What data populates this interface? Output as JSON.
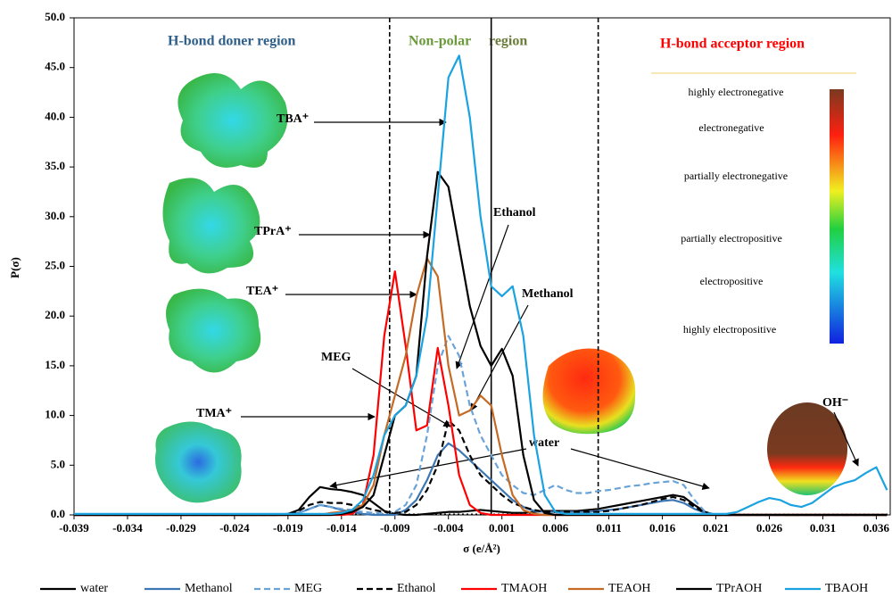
{
  "chart_data": {
    "type": "line",
    "xlabel": "σ (e/Å²)",
    "ylabel": "P(σ)",
    "x": [
      -0.039,
      -0.037,
      -0.035,
      -0.033,
      -0.031,
      -0.029,
      -0.027,
      -0.025,
      -0.023,
      -0.021,
      -0.02,
      -0.019,
      -0.018,
      -0.017,
      -0.016,
      -0.015,
      -0.014,
      -0.013,
      -0.012,
      -0.011,
      -0.01,
      -0.009,
      -0.008,
      -0.007,
      -0.006,
      -0.005,
      -0.004,
      -0.003,
      -0.002,
      -0.001,
      0,
      0.001,
      0.002,
      0.003,
      0.004,
      0.005,
      0.006,
      0.007,
      0.008,
      0.009,
      0.01,
      0.011,
      0.012,
      0.013,
      0.014,
      0.015,
      0.016,
      0.017,
      0.018,
      0.019,
      0.02,
      0.021,
      0.022,
      0.023,
      0.024,
      0.025,
      0.026,
      0.027,
      0.028,
      0.029,
      0.03,
      0.031,
      0.032,
      0.033,
      0.034,
      0.035,
      0.036,
      0.037
    ],
    "series": [
      {
        "name": "water",
        "color": "#000000",
        "dash": false,
        "values": [
          0,
          0,
          0,
          0,
          0,
          0,
          0,
          0,
          0,
          0,
          0,
          0.1,
          0.5,
          1.8,
          2.8,
          2.6,
          2.5,
          2.3,
          2.0,
          1.2,
          0.4,
          0.1,
          0,
          0,
          0.1,
          0.2,
          0.3,
          0.3,
          0.4,
          0.5,
          0.4,
          0.3,
          0.2,
          0.2,
          0.3,
          0.4,
          0.4,
          0.4,
          0.4,
          0.5,
          0.6,
          0.8,
          1.0,
          1.2,
          1.4,
          1.6,
          1.8,
          2.0,
          1.8,
          1.0,
          0.3,
          0,
          0,
          0,
          0,
          0,
          0,
          0,
          0,
          0,
          0,
          0,
          0,
          0,
          0,
          0,
          0,
          0
        ]
      },
      {
        "name": "Methanol",
        "color": "#3d77b3",
        "dash": false,
        "values": [
          0,
          0,
          0,
          0,
          0,
          0,
          0,
          0,
          0,
          0,
          0,
          0,
          0.2,
          0.6,
          1.0,
          0.8,
          0.5,
          0.3,
          0.1,
          0,
          0,
          0,
          0.5,
          1.5,
          3.5,
          6.0,
          7.2,
          6.5,
          5.5,
          4.5,
          3.5,
          2.5,
          1.5,
          0.8,
          0.4,
          0.3,
          0.3,
          0.3,
          0.3,
          0.3,
          0.4,
          0.5,
          0.6,
          0.8,
          1.0,
          1.2,
          1.4,
          1.5,
          1.2,
          0.6,
          0.2,
          0,
          0,
          0,
          0,
          0,
          0,
          0,
          0,
          0,
          0,
          0,
          0,
          0,
          0,
          0,
          0,
          0
        ]
      },
      {
        "name": "MEG",
        "color": "#6aa3d8",
        "dash": true,
        "values": [
          0,
          0,
          0,
          0,
          0,
          0,
          0,
          0,
          0,
          0,
          0,
          0,
          0.2,
          0.6,
          1.0,
          0.8,
          0.6,
          0.5,
          0.3,
          0.2,
          0.2,
          0.3,
          1.0,
          3.0,
          8.0,
          15.0,
          18.0,
          16.0,
          11.0,
          8.0,
          6.0,
          4.0,
          3.0,
          2.2,
          2.0,
          2.5,
          3.0,
          2.5,
          2.2,
          2.2,
          2.4,
          2.5,
          2.7,
          2.9,
          3.0,
          3.2,
          3.3,
          3.4,
          3.0,
          1.5,
          0.3,
          0,
          0,
          0,
          0,
          0,
          0,
          0,
          0,
          0,
          0,
          0,
          0,
          0,
          0,
          0,
          0,
          0
        ]
      },
      {
        "name": "Ethanol",
        "color": "#000000",
        "dash": true,
        "values": [
          0,
          0,
          0,
          0,
          0,
          0,
          0,
          0,
          0,
          0,
          0,
          0.1,
          0.4,
          1.0,
          1.3,
          1.2,
          1.2,
          1.0,
          0.8,
          0.5,
          0.3,
          0.2,
          0.3,
          1.0,
          2.5,
          5.0,
          9.5,
          8.5,
          6.0,
          4.0,
          3.0,
          2.0,
          1.2,
          0.8,
          0.5,
          0.3,
          0.3,
          0.3,
          0.3,
          0.3,
          0.3,
          0.4,
          0.6,
          0.8,
          1.0,
          1.3,
          1.6,
          1.8,
          1.5,
          0.8,
          0.2,
          0,
          0,
          0,
          0,
          0,
          0,
          0,
          0,
          0,
          0,
          0,
          0,
          0,
          0,
          0,
          0,
          0
        ]
      },
      {
        "name": "TMAOH",
        "color": "#ff0000",
        "dash": false,
        "values": [
          0,
          0,
          0,
          0,
          0,
          0,
          0,
          0,
          0,
          0,
          0,
          0,
          0,
          0,
          0,
          0,
          0,
          0.1,
          1.0,
          6.0,
          18.0,
          24.5,
          17.0,
          8.5,
          9.0,
          16.8,
          11.0,
          4.0,
          1.0,
          0.2,
          0,
          0,
          0,
          0,
          0,
          0,
          0,
          0,
          0,
          0,
          0,
          0,
          0,
          0,
          0,
          0,
          0,
          0,
          0,
          0,
          0,
          0,
          0,
          0,
          0,
          0,
          0,
          0,
          0,
          0,
          0,
          0,
          0,
          0,
          0,
          0,
          0,
          0
        ]
      },
      {
        "name": "TEAOH",
        "color": "#c46a25",
        "dash": false,
        "values": [
          0,
          0,
          0,
          0,
          0,
          0,
          0,
          0,
          0,
          0,
          0,
          0,
          0,
          0,
          0,
          0.2,
          0.3,
          0.5,
          1.0,
          3.0,
          8.0,
          12.0,
          16.0,
          22.0,
          25.8,
          24.0,
          15.0,
          10.0,
          10.5,
          12.0,
          11.0,
          6.0,
          2.0,
          0.5,
          0.1,
          0,
          0,
          0,
          0,
          0,
          0,
          0,
          0,
          0,
          0,
          0,
          0,
          0,
          0,
          0,
          0,
          0,
          0,
          0,
          0,
          0,
          0,
          0,
          0,
          0,
          0,
          0,
          0,
          0,
          0,
          0,
          0,
          0
        ]
      },
      {
        "name": "TPrAOH",
        "color": "#000000",
        "dash": false,
        "values": [
          0,
          0,
          0,
          0,
          0,
          0,
          0,
          0,
          0,
          0,
          0,
          0,
          0,
          0,
          0,
          0,
          0.1,
          0.3,
          0.8,
          2.0,
          6.0,
          10.0,
          11.0,
          14.0,
          26.0,
          34.5,
          33.0,
          27.0,
          21.0,
          17.0,
          15.0,
          16.7,
          14.0,
          6.0,
          1.5,
          0.2,
          0,
          0,
          0,
          0,
          0,
          0,
          0,
          0,
          0,
          0,
          0,
          0,
          0,
          0,
          0,
          0,
          0,
          0,
          0,
          0,
          0,
          0,
          0,
          0,
          0,
          0,
          0,
          0,
          0,
          0,
          0,
          0
        ]
      },
      {
        "name": "TBAOH",
        "color": "#1aa3e0",
        "dash": false,
        "values": [
          0.1,
          0.1,
          0.1,
          0.1,
          0.1,
          0.1,
          0.1,
          0.1,
          0.1,
          0.1,
          0.1,
          0.1,
          0.1,
          0.1,
          0.1,
          0.1,
          0.2,
          0.5,
          1.5,
          4.0,
          8.0,
          10.0,
          11.0,
          14.0,
          20.0,
          32.0,
          44.0,
          46.2,
          40.0,
          30.0,
          23.0,
          22.0,
          23.0,
          18.0,
          8.0,
          2.0,
          0.3,
          0.1,
          0.1,
          0.1,
          0.1,
          0.1,
          0.1,
          0.1,
          0.1,
          0.1,
          0.1,
          0.1,
          0.1,
          0.1,
          0.1,
          0.1,
          0.1,
          0.3,
          0.8,
          1.3,
          1.7,
          1.5,
          1.0,
          0.8,
          1.2,
          2.0,
          2.8,
          3.2,
          3.5,
          4.2,
          4.8,
          2.5
        ]
      }
    ],
    "xlim": [
      -0.039,
      0.0373
    ],
    "xticks": [
      -0.039,
      -0.034,
      -0.029,
      -0.024,
      -0.019,
      -0.014,
      -0.009,
      -0.004,
      0.001,
      0.006,
      0.011,
      0.016,
      0.021,
      0.026,
      0.031,
      0.036
    ],
    "ylim": [
      0,
      50
    ],
    "yticks": [
      {
        "value": 0,
        "label": "0.0"
      },
      {
        "value": 5,
        "label": "5.0"
      },
      {
        "value": 10,
        "label": "10.0"
      },
      {
        "value": 15,
        "label": "15.0"
      },
      {
        "value": 20,
        "label": "20.0"
      },
      {
        "value": 25,
        "label": "25.0"
      },
      {
        "value": 30,
        "label": "30.0"
      },
      {
        "value": 35,
        "label": "35.0"
      },
      {
        "value": 40,
        "label": "40.0"
      },
      {
        "value": 45,
        "label": "45.0"
      },
      {
        "value": 50,
        "label": "50.0"
      }
    ],
    "vlines": [
      {
        "value": -0.0095,
        "dash": true
      },
      {
        "value": 0,
        "dash": false
      },
      {
        "value": 0.01,
        "dash": true
      }
    ],
    "regions": [
      {
        "text": "H-bond doner region",
        "color": "#2e5f8a"
      },
      {
        "text": "Non-polar",
        "color": "#6a9a3a"
      },
      {
        "text": "region",
        "color": "#6b7d3a"
      },
      {
        "text": "H-bond acceptor region",
        "color": "#ff0000"
      }
    ],
    "annotations": [
      "TBA⁺",
      "TPrA⁺",
      "TEA⁺",
      "TMA⁺",
      "Ethanol",
      "Methanol",
      "MEG",
      "water",
      "OH⁻"
    ],
    "color_scale": [
      "highly electronegative",
      "electronegative",
      "partially electronegative",
      "partially electropositive",
      "electropositive",
      "highly electropositive"
    ]
  }
}
